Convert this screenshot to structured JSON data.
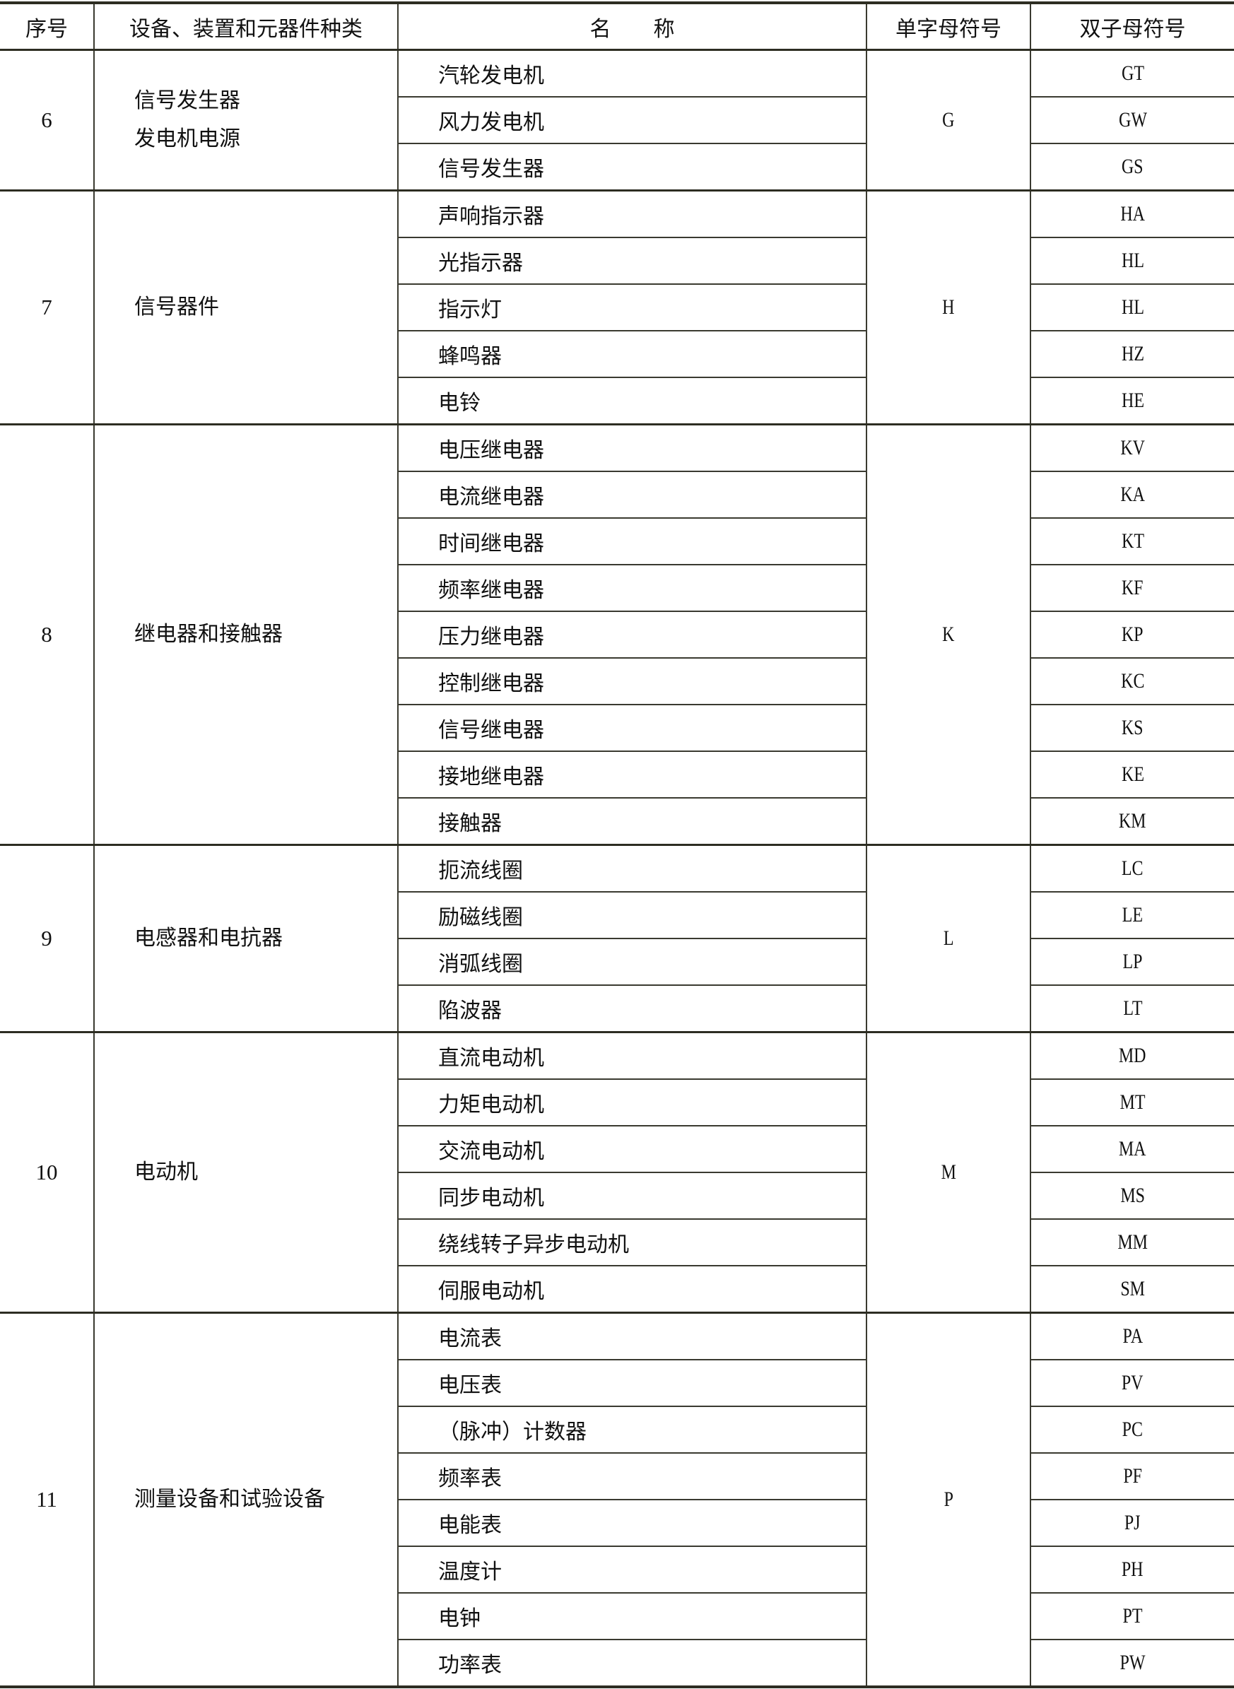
{
  "headers": {
    "index": "序号",
    "category": "设备、装置和元器件种类",
    "name": "名　　称",
    "single_letter": "单字母符号",
    "double_letter": "双子母符号"
  },
  "groups": [
    {
      "index": "6",
      "category": [
        "信号发生器",
        "发电机电源"
      ],
      "single": "G",
      "items": [
        {
          "name": "汽轮发电机",
          "code": "GT"
        },
        {
          "name": "风力发电机",
          "code": "GW"
        },
        {
          "name": "信号发生器",
          "code": "GS"
        }
      ]
    },
    {
      "index": "7",
      "category": [
        "信号器件"
      ],
      "single": "H",
      "items": [
        {
          "name": "声响指示器",
          "code": "HA"
        },
        {
          "name": "光指示器",
          "code": "HL"
        },
        {
          "name": "指示灯",
          "code": "HL"
        },
        {
          "name": "蜂鸣器",
          "code": "HZ"
        },
        {
          "name": "电铃",
          "code": "HE"
        }
      ]
    },
    {
      "index": "8",
      "category": [
        "继电器和接触器"
      ],
      "single": "K",
      "items": [
        {
          "name": "电压继电器",
          "code": "KV"
        },
        {
          "name": "电流继电器",
          "code": "KA"
        },
        {
          "name": "时间继电器",
          "code": "KT"
        },
        {
          "name": "频率继电器",
          "code": "KF"
        },
        {
          "name": "压力继电器",
          "code": "KP"
        },
        {
          "name": "控制继电器",
          "code": "KC"
        },
        {
          "name": "信号继电器",
          "code": "KS"
        },
        {
          "name": "接地继电器",
          "code": "KE"
        },
        {
          "name": "接触器",
          "code": "KM"
        }
      ]
    },
    {
      "index": "9",
      "category": [
        "电感器和电抗器"
      ],
      "single": "L",
      "items": [
        {
          "name": "扼流线圈",
          "code": "LC"
        },
        {
          "name": "励磁线圈",
          "code": "LE"
        },
        {
          "name": "消弧线圈",
          "code": "LP"
        },
        {
          "name": "陷波器",
          "code": "LT"
        }
      ]
    },
    {
      "index": "10",
      "category": [
        "电动机"
      ],
      "single": "M",
      "items": [
        {
          "name": "直流电动机",
          "code": "MD"
        },
        {
          "name": "力矩电动机",
          "code": "MT"
        },
        {
          "name": "交流电动机",
          "code": "MA"
        },
        {
          "name": "同步电动机",
          "code": "MS"
        },
        {
          "name": "绕线转子异步电动机",
          "code": "MM"
        },
        {
          "name": "伺服电动机",
          "code": "SM"
        }
      ]
    },
    {
      "index": "11",
      "category": [
        "测量设备和试验设备"
      ],
      "single": "P",
      "items": [
        {
          "name": "电流表",
          "code": "PA"
        },
        {
          "name": "电压表",
          "code": "PV"
        },
        {
          "name": "（脉冲）计数器",
          "code": "PC"
        },
        {
          "name": "频率表",
          "code": "PF"
        },
        {
          "name": "电能表",
          "code": "PJ"
        },
        {
          "name": "温度计",
          "code": "PH"
        },
        {
          "name": "电钟",
          "code": "PT"
        },
        {
          "name": "功率表",
          "code": "PW"
        }
      ]
    }
  ]
}
